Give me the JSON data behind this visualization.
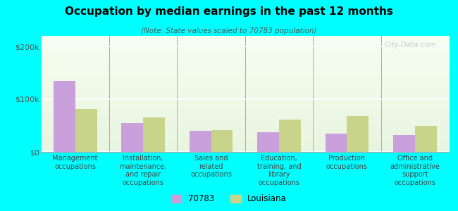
{
  "title": "Occupation by median earnings in the past 12 months",
  "subtitle": "(Note: State values scaled to 70783 population)",
  "categories": [
    "Management\noccupations",
    "Installation,\nmaintenance,\nand repair\noccupations",
    "Sales and\nrelated\noccupations",
    "Education,\ntraining, and\nlibrary\noccupations",
    "Production\noccupations",
    "Office and\nadministrative\nsupport\noccupations"
  ],
  "values_70783": [
    135000,
    55000,
    40000,
    38000,
    35000,
    32000
  ],
  "values_louisiana": [
    82000,
    65000,
    42000,
    62000,
    68000,
    50000
  ],
  "color_70783": "#c9a0dc",
  "color_louisiana": "#c8d48a",
  "bar_width": 0.32,
  "ylim": [
    0,
    220000
  ],
  "yticks": [
    0,
    100000,
    200000
  ],
  "ytick_labels": [
    "$0",
    "$100k",
    "$200k"
  ],
  "outer_background": "#00ffff",
  "watermark": "City-Data.com",
  "legend_label_70783": "70783",
  "legend_label_louisiana": "Louisiana",
  "bg_top_color": "#e8f5e0",
  "bg_bottom_color": "#f5fef0"
}
